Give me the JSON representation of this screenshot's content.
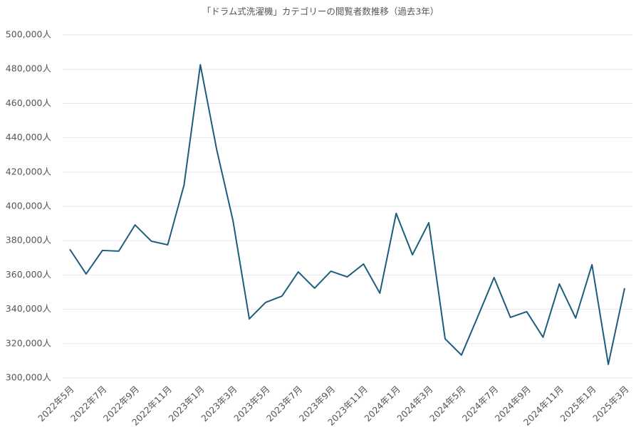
{
  "chart_data": {
    "type": "line",
    "title": "「ドラム式洗濯機」カテゴリーの閲覧者数推移（過去3年）",
    "categories": [
      "2022年5月",
      null,
      "2022年7月",
      null,
      "2022年9月",
      null,
      "2022年11月",
      null,
      "2023年1月",
      null,
      "2023年3月",
      null,
      "2023年5月",
      null,
      "2023年7月",
      null,
      "2023年9月",
      null,
      "2023年11月",
      null,
      "2024年1月",
      null,
      "2024年3月",
      null,
      "2024年5月",
      null,
      "2024年7月",
      null,
      "2024年9月",
      null,
      "2024年11月",
      null,
      "2025年1月",
      null,
      "2025年3月"
    ],
    "series": [
      {
        "color": "#1b5d7c",
        "values": [
          375000,
          360600,
          374300,
          373900,
          389200,
          379700,
          377600,
          412400,
          482600,
          433200,
          391700,
          334400,
          344000,
          347700,
          361800,
          352300,
          362200,
          358900,
          366400,
          349400,
          395900,
          371800,
          390500,
          322800,
          313300,
          335700,
          358500,
          335300,
          338600,
          323700,
          354800,
          334900,
          366000,
          307900,
          352300
        ]
      }
    ],
    "ylim": [
      300000,
      500000
    ],
    "yticks": [
      {
        "value": 300000,
        "label": "300,000人"
      },
      {
        "value": 320000,
        "label": "320,000人"
      },
      {
        "value": 340000,
        "label": "340,000人"
      },
      {
        "value": 360000,
        "label": "360,000人"
      },
      {
        "value": 380000,
        "label": "380,000人"
      },
      {
        "value": 400000,
        "label": "400,000人"
      },
      {
        "value": 420000,
        "label": "420,000人"
      },
      {
        "value": 440000,
        "label": "440,000人"
      },
      {
        "value": 460000,
        "label": "460,000人"
      },
      {
        "value": 480000,
        "label": "480,000人"
      },
      {
        "value": 500000,
        "label": "500,000人"
      }
    ],
    "grid": true
  }
}
